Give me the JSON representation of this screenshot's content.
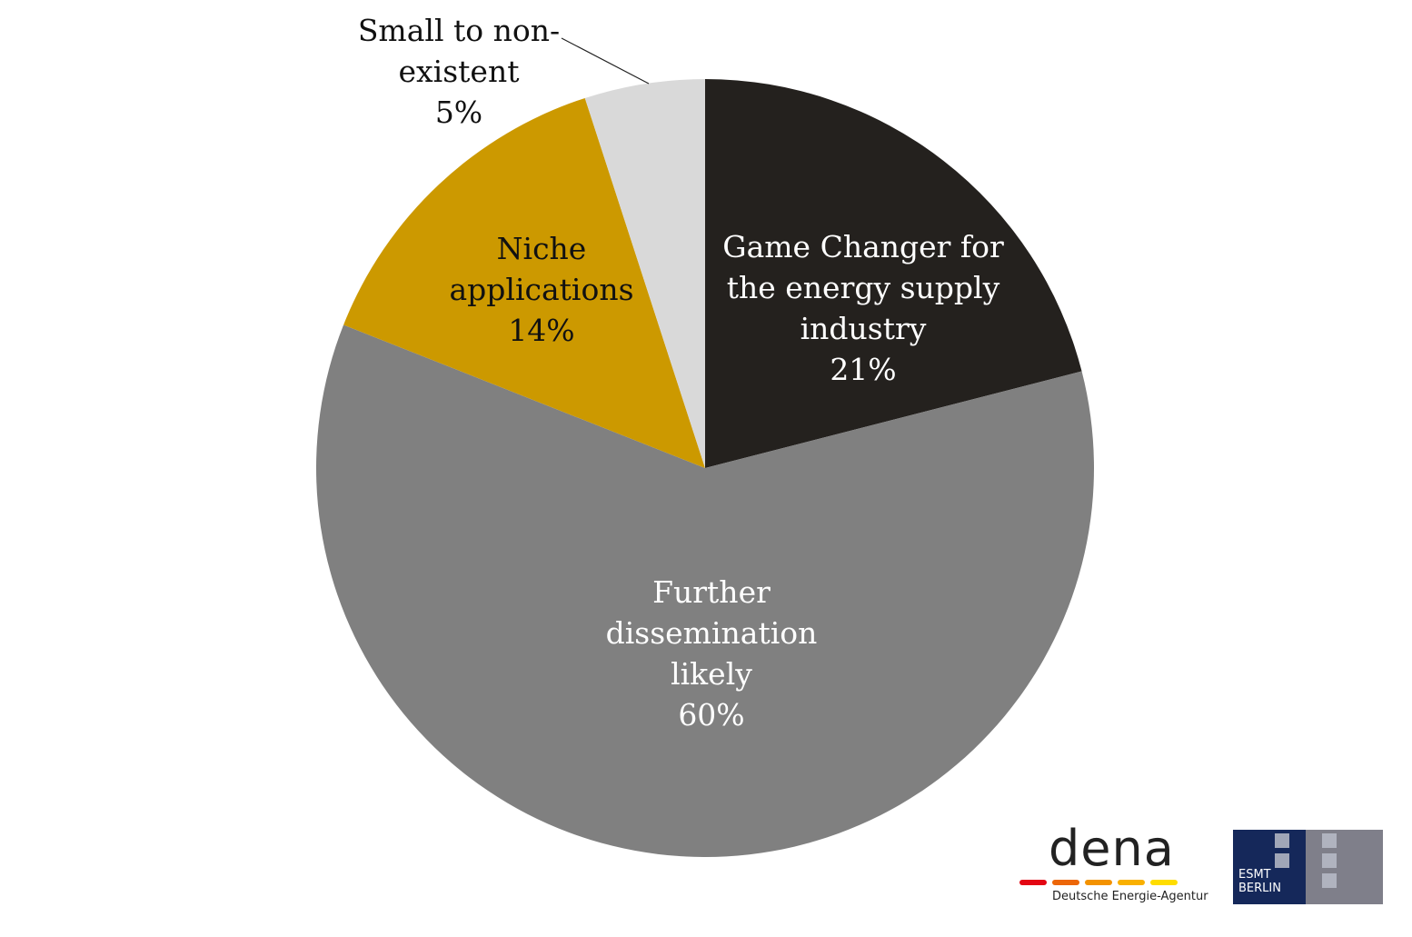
{
  "chart_data": {
    "type": "pie",
    "start_angle": "12 o'clock",
    "direction": "clockwise",
    "slices": [
      {
        "label_lines": [
          "Game Changer for",
          "the energy supply",
          "industry"
        ],
        "value_label": "21%",
        "value": 21,
        "color": "#24211e",
        "text_color": "#ffffff"
      },
      {
        "label_lines": [
          "Further",
          "dissemination",
          "likely"
        ],
        "value_label": "60%",
        "value": 60,
        "color": "#808080",
        "text_color": "#ffffff"
      },
      {
        "label_lines": [
          "Niche",
          "applications"
        ],
        "value_label": "14%",
        "value": 14,
        "color": "#cc9900",
        "text_color": "#111111"
      },
      {
        "label_lines": [
          "Small to non-",
          "existent"
        ],
        "value_label": "5%",
        "value": 5,
        "color": "#d9d9d9",
        "text_color": "#111111"
      }
    ]
  },
  "logos": {
    "dena": {
      "word": "dena",
      "subtitle": "Deutsche Energie-Agentur",
      "dash_colors": [
        "#e30613",
        "#ec6608",
        "#f39200",
        "#f9b000",
        "#ffdd00"
      ]
    },
    "esmt": {
      "line1": "ESMT",
      "line2": "BERLIN"
    }
  }
}
